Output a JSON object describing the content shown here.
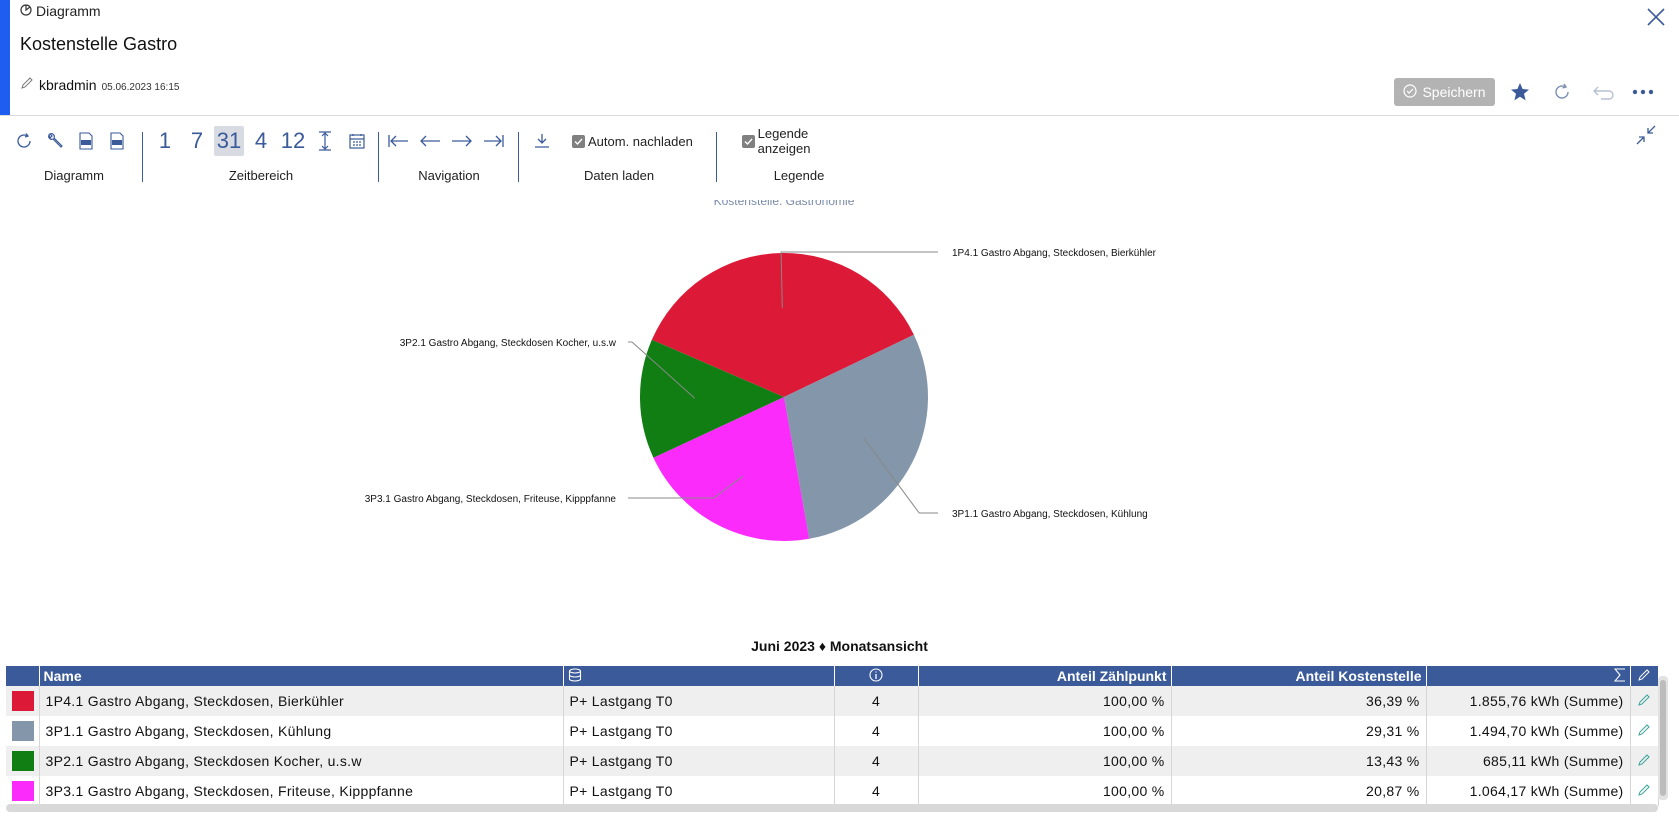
{
  "header": {
    "breadcrumb": "Diagramm",
    "title": "Kostenstelle Gastro",
    "user": "kbradmin",
    "date": "05.06.2023 16:15",
    "save_label": "Speichern",
    "accent_color": "#1f5cf0"
  },
  "toolbar": {
    "groups": {
      "diagramm": "Diagramm",
      "zeitbereich": "Zeitbereich",
      "navigation": "Navigation",
      "daten_laden": "Daten laden",
      "legende": "Legende"
    },
    "time_buttons": [
      "1",
      "7",
      "31",
      "4",
      "12"
    ],
    "active_time_button": "31",
    "auto_reload_label": "Autom. nachladen",
    "auto_reload_checked": true,
    "show_legend_label": "Legende anzeigen",
    "show_legend_checked": true
  },
  "chart_data": {
    "type": "pie",
    "title": "Kostenstelle: Gastronomie",
    "slices": [
      {
        "label": "1P4.1 Gastro Abgang, Steckdosen, Bierkühler",
        "value": 36.39,
        "color": "#dc1a37"
      },
      {
        "label": "3P1.1 Gastro Abgang, Steckdosen, Kühlung",
        "value": 29.31,
        "color": "#8496aa"
      },
      {
        "label": "3P3.1 Gastro Abgang, Steckdosen, Friteuse, Kipppfanne",
        "value": 20.87,
        "color": "#fb2bfb"
      },
      {
        "label": "3P2.1 Gastro Abgang, Steckdosen Kocher, u.s.w",
        "value": 13.43,
        "color": "#117e13"
      }
    ]
  },
  "table": {
    "caption": "Juni 2023 ♦ Monatsansicht",
    "headers": {
      "name": "Name",
      "anteil_zaehlpunkt": "Anteil Zählpunkt",
      "anteil_kostenstelle": "Anteil Kostenstelle"
    },
    "rows": [
      {
        "color": "#dc1a37",
        "name": "1P4.1 Gastro Abgang, Steckdosen, Bierkühler",
        "source": "P+ Lastgang T0",
        "info": "4",
        "zaehlpunkt": "100,00 %",
        "kostenstelle": "36,39 %",
        "summe": "1.855,76 kWh (Summe)"
      },
      {
        "color": "#8496aa",
        "name": "3P1.1 Gastro Abgang, Steckdosen, Kühlung",
        "source": "P+ Lastgang T0",
        "info": "4",
        "zaehlpunkt": "100,00 %",
        "kostenstelle": "29,31 %",
        "summe": "1.494,70 kWh (Summe)"
      },
      {
        "color": "#117e13",
        "name": "3P2.1 Gastro Abgang, Steckdosen Kocher, u.s.w",
        "source": "P+ Lastgang T0",
        "info": "4",
        "zaehlpunkt": "100,00 %",
        "kostenstelle": "13,43 %",
        "summe": "685,11 kWh (Summe)"
      },
      {
        "color": "#fb2bfb",
        "name": "3P3.1 Gastro Abgang, Steckdosen, Friteuse, Kipppfanne",
        "source": "P+ Lastgang T0",
        "info": "4",
        "zaehlpunkt": "100,00 %",
        "kostenstelle": "20,87 %",
        "summe": "1.064,17 kWh (Summe)"
      }
    ]
  }
}
